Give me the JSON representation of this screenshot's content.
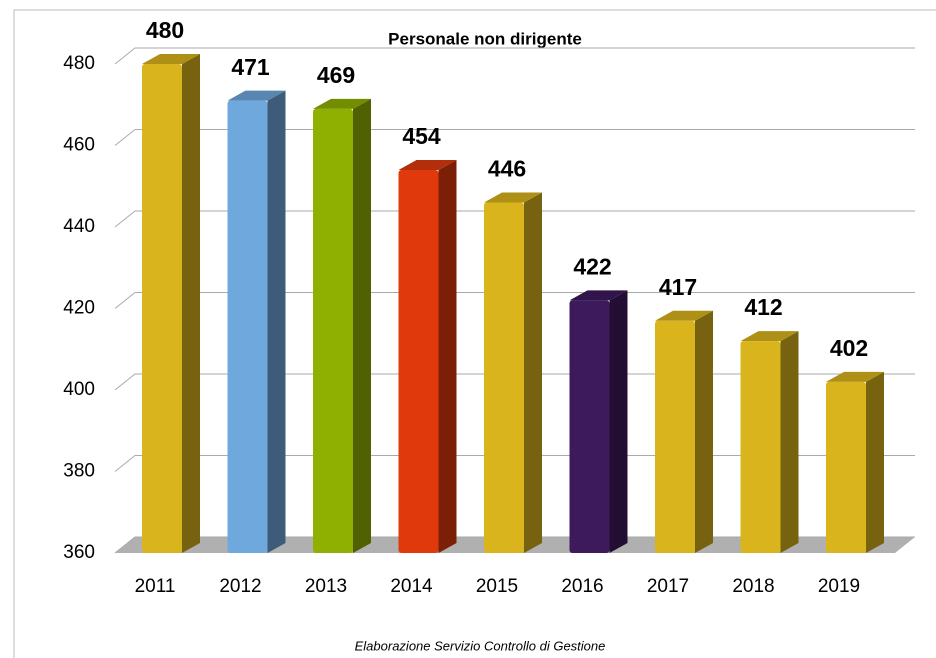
{
  "chart_data": {
    "type": "bar3d",
    "title": "Personale non dirigente",
    "categories": [
      "2011",
      "2012",
      "2013",
      "2014",
      "2015",
      "2016",
      "2017",
      "2018",
      "2019"
    ],
    "values": [
      480,
      471,
      469,
      454,
      446,
      422,
      417,
      412,
      402
    ],
    "colors": [
      "#d9b41c",
      "#6fa8dc",
      "#8fb000",
      "#e03a0c",
      "#d9b41c",
      "#3d1a5c",
      "#d9b41c",
      "#d9b41c",
      "#d9b41c"
    ],
    "ylim": [
      360,
      480
    ],
    "yticks": [
      360,
      380,
      400,
      420,
      440,
      460,
      480
    ],
    "grid": true,
    "footnote": "Elaborazione Servizio Controllo di Gestione"
  }
}
